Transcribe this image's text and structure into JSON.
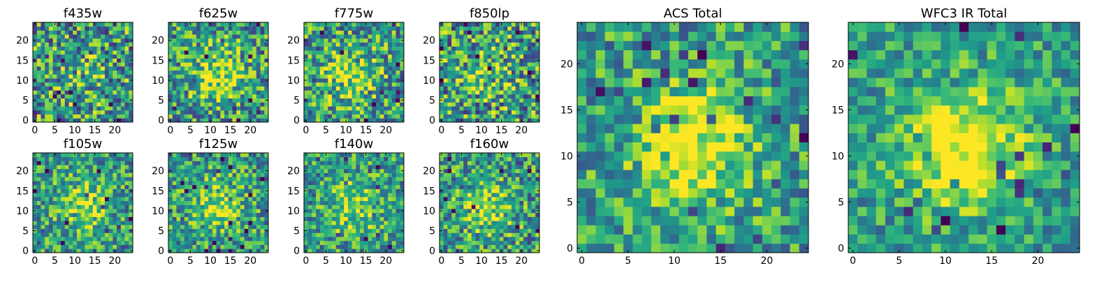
{
  "chart_data": [
    {
      "type": "heatmap",
      "title": "f435w",
      "shape": [
        25,
        25
      ],
      "xlim": [
        0,
        24
      ],
      "ylim": [
        0,
        24
      ],
      "xticks": [
        "0",
        "5",
        "10",
        "15",
        "20"
      ],
      "yticks": [
        "0",
        "5",
        "10",
        "15",
        "20"
      ],
      "seed": 101,
      "noise": 0.85,
      "blob": 0.1
    },
    {
      "type": "heatmap",
      "title": "f625w",
      "shape": [
        25,
        25
      ],
      "xlim": [
        0,
        24
      ],
      "ylim": [
        0,
        24
      ],
      "xticks": [
        "0",
        "5",
        "10",
        "15",
        "20"
      ],
      "yticks": [
        "0",
        "5",
        "10",
        "15",
        "20"
      ],
      "seed": 202,
      "noise": 0.75,
      "blob": 0.35
    },
    {
      "type": "heatmap",
      "title": "f775w",
      "shape": [
        25,
        25
      ],
      "xlim": [
        0,
        24
      ],
      "ylim": [
        0,
        24
      ],
      "xticks": [
        "0",
        "5",
        "10",
        "15",
        "20"
      ],
      "yticks": [
        "0",
        "5",
        "10",
        "15",
        "20"
      ],
      "seed": 303,
      "noise": 0.75,
      "blob": 0.35
    },
    {
      "type": "heatmap",
      "title": "f850lp",
      "shape": [
        25,
        25
      ],
      "xlim": [
        0,
        24
      ],
      "ylim": [
        0,
        24
      ],
      "xticks": [
        "0",
        "5",
        "10",
        "15",
        "20"
      ],
      "yticks": [
        "0",
        "5",
        "10",
        "15",
        "20"
      ],
      "seed": 404,
      "noise": 0.85,
      "blob": 0.15
    },
    {
      "type": "heatmap",
      "title": "f105w",
      "shape": [
        25,
        25
      ],
      "xlim": [
        0,
        24
      ],
      "ylim": [
        0,
        24
      ],
      "xticks": [
        "0",
        "5",
        "10",
        "15",
        "20"
      ],
      "yticks": [
        "0",
        "5",
        "10",
        "15",
        "20"
      ],
      "seed": 505,
      "noise": 0.65,
      "blob": 0.3
    },
    {
      "type": "heatmap",
      "title": "f125w",
      "shape": [
        25,
        25
      ],
      "xlim": [
        0,
        24
      ],
      "ylim": [
        0,
        24
      ],
      "xticks": [
        "0",
        "5",
        "10",
        "15",
        "20"
      ],
      "yticks": [
        "0",
        "5",
        "10",
        "15",
        "20"
      ],
      "seed": 606,
      "noise": 0.65,
      "blob": 0.35
    },
    {
      "type": "heatmap",
      "title": "f140w",
      "shape": [
        25,
        25
      ],
      "xlim": [
        0,
        24
      ],
      "ylim": [
        0,
        24
      ],
      "xticks": [
        "0",
        "5",
        "10",
        "15",
        "20"
      ],
      "yticks": [
        "0",
        "5",
        "10",
        "15",
        "20"
      ],
      "seed": 707,
      "noise": 0.65,
      "blob": 0.3
    },
    {
      "type": "heatmap",
      "title": "f160w",
      "shape": [
        25,
        25
      ],
      "xlim": [
        0,
        24
      ],
      "ylim": [
        0,
        24
      ],
      "xticks": [
        "0",
        "5",
        "10",
        "15",
        "20"
      ],
      "yticks": [
        "0",
        "5",
        "10",
        "15",
        "20"
      ],
      "seed": 808,
      "noise": 0.7,
      "blob": 0.3
    },
    {
      "type": "heatmap",
      "title": "ACS Total",
      "shape": [
        25,
        25
      ],
      "xlim": [
        0,
        24
      ],
      "ylim": [
        0,
        24
      ],
      "xticks": [
        "0",
        "5",
        "10",
        "15",
        "20"
      ],
      "yticks": [
        "0",
        "5",
        "10",
        "15",
        "20"
      ],
      "seed": 909,
      "noise": 0.6,
      "blob": 0.45
    },
    {
      "type": "heatmap",
      "title": "WFC3 IR Total",
      "shape": [
        25,
        25
      ],
      "xlim": [
        0,
        24
      ],
      "ylim": [
        0,
        24
      ],
      "xticks": [
        "0",
        "5",
        "10",
        "15",
        "20"
      ],
      "yticks": [
        "0",
        "5",
        "10",
        "15",
        "20"
      ],
      "seed": 1010,
      "noise": 0.5,
      "blob": 0.55
    }
  ],
  "colors": {
    "colormap": "viridis",
    "viridis_stops": [
      "#440154",
      "#482878",
      "#3e4989",
      "#31688e",
      "#26828e",
      "#1f9e89",
      "#35b779",
      "#6ece58",
      "#b5de2b",
      "#fde725"
    ]
  }
}
